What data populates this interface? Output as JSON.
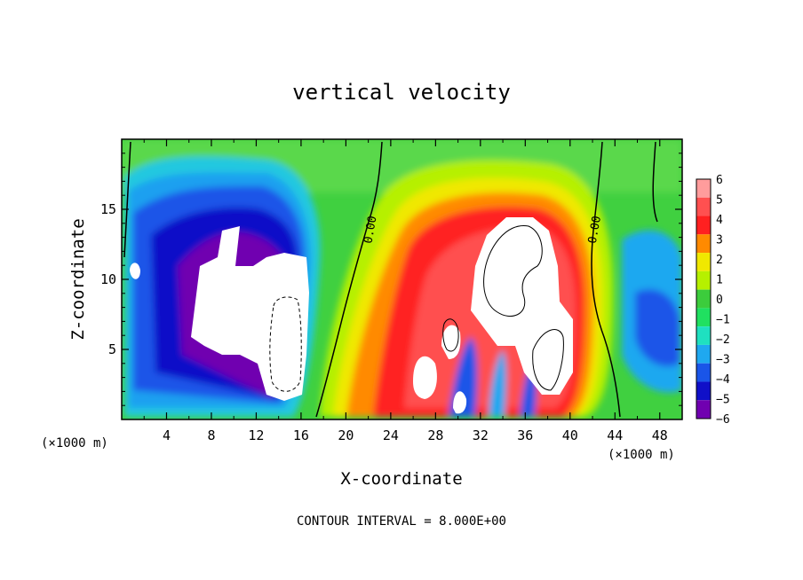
{
  "chart_data": {
    "type": "heatmap",
    "title": "vertical velocity",
    "xlabel": "X-coordinate",
    "ylabel": "Z-coordinate",
    "x_unit": "(×1000 m)",
    "x_unit_right": "(×1000 m)",
    "footer": "CONTOUR INTERVAL = 8.000E+00",
    "xlim": [
      0,
      50
    ],
    "ylim": [
      0,
      20
    ],
    "x_ticks": [
      4,
      8,
      12,
      16,
      20,
      24,
      28,
      32,
      36,
      40,
      44,
      48
    ],
    "y_ticks": [
      5,
      10,
      15
    ],
    "colorbar": {
      "levels": [
        "6",
        "5",
        "4",
        "3",
        "2",
        "1",
        "0",
        "−1",
        "−2",
        "−3",
        "−4",
        "−5",
        "−6"
      ],
      "colors": [
        "#ff9c9c",
        "#ff5050",
        "#ff2020",
        "#ff8a00",
        "#f0e800",
        "#b6f000",
        "#3ccc3c",
        "#20e060",
        "#1fe0c0",
        "#1fa8f0",
        "#1a55e8",
        "#1010c8",
        "#7000b0"
      ]
    },
    "contour_labels": [
      {
        "text": "0.00",
        "x": 22.5,
        "z": 13.5
      },
      {
        "text": "0.00",
        "x": 42.5,
        "z": 13.5
      }
    ],
    "features": [
      {
        "kind": "downdraft",
        "x_range": [
          6,
          17
        ],
        "z_range": [
          1.5,
          13
        ],
        "max": -6
      },
      {
        "kind": "updraft",
        "x_range": [
          26,
          41
        ],
        "z_range": [
          1,
          14
        ],
        "max": 6
      },
      {
        "kind": "downdraft",
        "x_range": [
          44,
          49
        ],
        "z_range": [
          2,
          10
        ],
        "max": -4
      }
    ]
  }
}
